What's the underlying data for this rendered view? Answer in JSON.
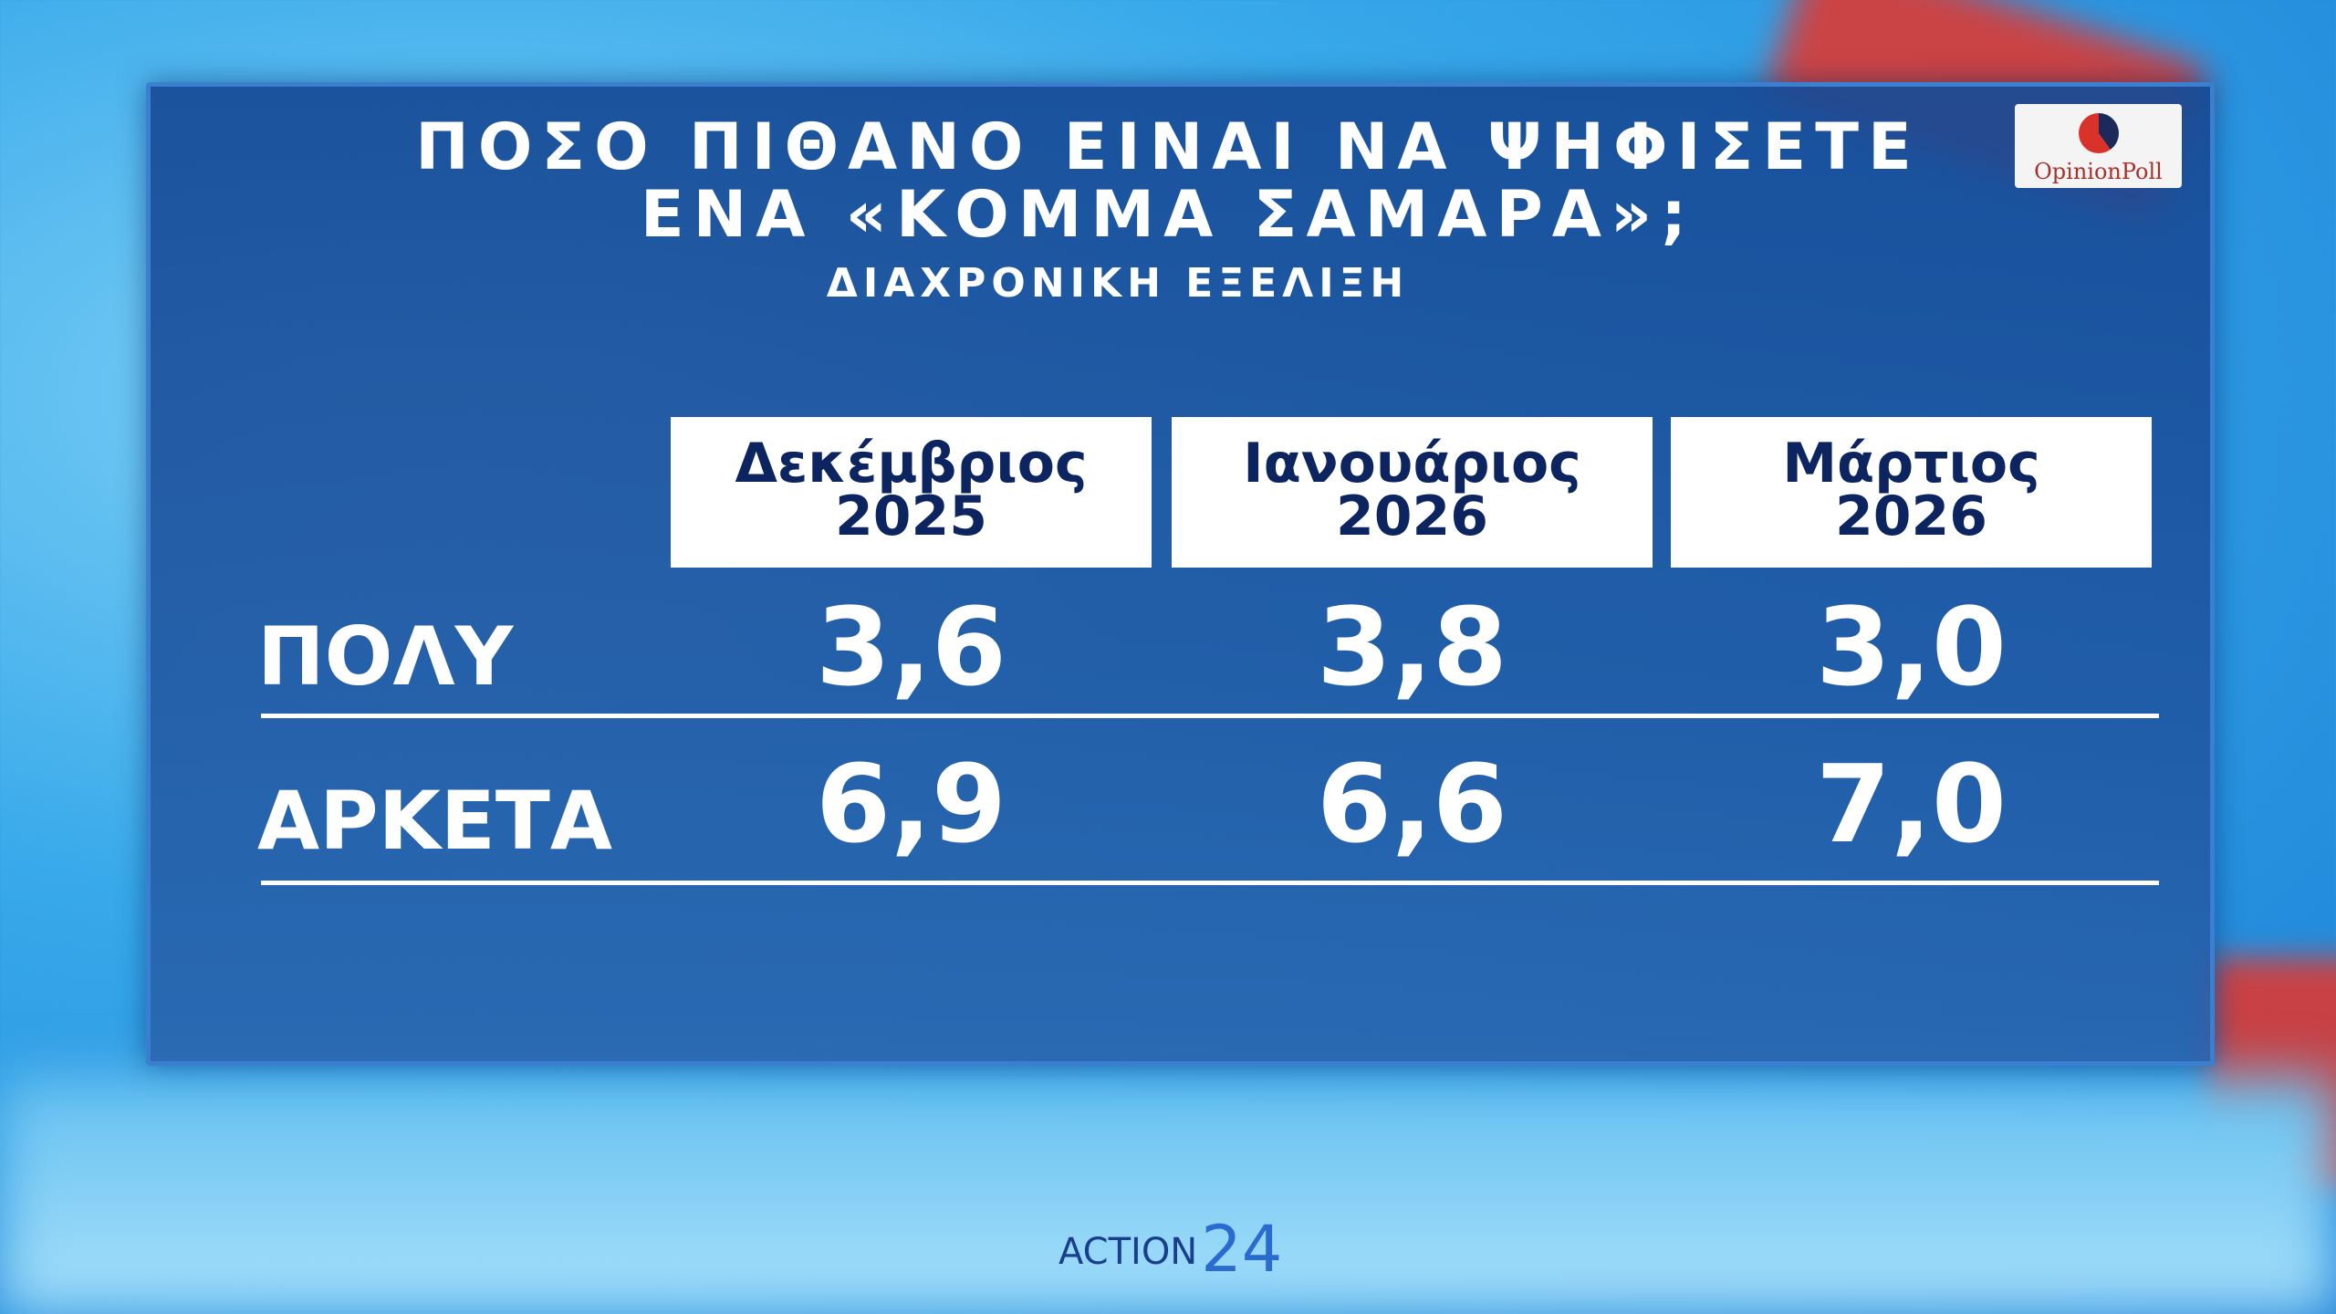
{
  "header": {
    "title": [
      "ΠΟΣΟ ΠΙΘΑΝΟ ΕΙΝΑΙ ΝΑ ΨΗΦΙΣΕΤΕ",
      "ΕΝΑ «ΚΟΜΜΑ ΣΑΜΑΡΑ»;"
    ],
    "subtitle": "ΔΙΑΧΡΟΝΙΚΗ ΕΞΕΛΙΞΗ",
    "logo": "OpinionPoll"
  },
  "table": {
    "columns": [
      {
        "month": "Δεκέμβριος",
        "year": "2025"
      },
      {
        "month": "Ιανουάριος",
        "year": "2026"
      },
      {
        "month": "Μάρτιος",
        "year": "2026"
      }
    ],
    "rows": [
      {
        "label": "ΠΟΛΥ",
        "values": [
          "3,6",
          "3,8",
          "3,0"
        ]
      },
      {
        "label": "ΑΡΚΕΤΑ",
        "values": [
          "6,9",
          "6,6",
          "7,0"
        ]
      }
    ]
  },
  "footer": {
    "brand": "ACTION",
    "number": "24"
  }
}
